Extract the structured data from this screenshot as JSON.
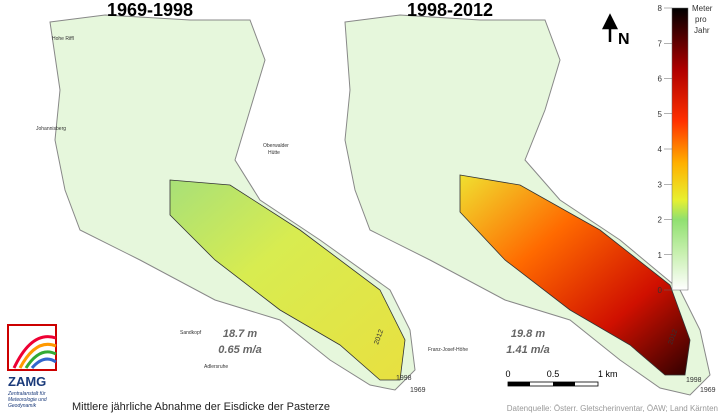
{
  "panels": [
    {
      "title": "1969-1998",
      "thickness_loss": "18.7 m",
      "rate": "0.65 m/a",
      "contour_labels": [
        "2012",
        "1998",
        "1969"
      ],
      "place_labels": [
        "Hohe Riffl",
        "Johannisberg",
        "Oberwalder",
        "Hütte",
        "Sandkopf",
        "Adlersruhe"
      ]
    },
    {
      "title": "1998-2012",
      "thickness_loss": "19.8 m",
      "rate": "1.41 m/a",
      "contour_labels": [
        "2012",
        "1998",
        "1969"
      ],
      "place_labels": [
        "Franz-Josef-Höhe"
      ]
    }
  ],
  "north": "N",
  "colorbar": {
    "label": [
      "Meter",
      "pro",
      "Jahr"
    ],
    "range": [
      0,
      8
    ],
    "ticks": [
      0,
      1,
      2,
      3,
      4,
      5,
      6,
      7,
      8
    ]
  },
  "scale_bar": {
    "labels": [
      "0",
      "0.5",
      "1 km"
    ]
  },
  "logo": {
    "name": "ZAMG",
    "subtitle": [
      "Zentralanstalt für",
      "Meteorologie und",
      "Geodynamik"
    ]
  },
  "caption": "Mittlere jährliche Abnahme der Eisdicke der Pasterze",
  "source": "Datenquelle: Österr. Gletscherinventar, ÖAW; Land Kärnten"
}
